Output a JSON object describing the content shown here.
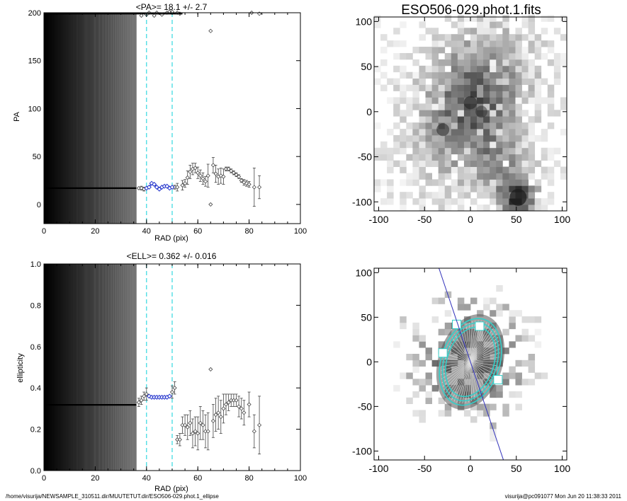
{
  "chart_data": [
    {
      "id": "pa-profile",
      "type": "scatter",
      "title": "<PA>=  18.1 +/-   2.7",
      "xlabel": "RAD (pix)",
      "ylabel": "PA",
      "xlim": [
        0,
        100
      ],
      "ylim": [
        -20,
        200
      ],
      "xticks": [
        0,
        20,
        40,
        60,
        80,
        100
      ],
      "yticks": [
        0,
        50,
        100,
        150,
        200
      ],
      "vlines": [
        40,
        50
      ],
      "inner_flat": {
        "from": 0,
        "to": 36,
        "y": 17
      },
      "top_row": {
        "from": 0,
        "to": 54,
        "y": 199
      },
      "top_markers": [
        {
          "x": 38,
          "y": 197
        },
        {
          "x": 40,
          "y": 198
        },
        {
          "x": 41,
          "y": 200
        },
        {
          "x": 43,
          "y": 197
        },
        {
          "x": 44,
          "y": 200
        },
        {
          "x": 46,
          "y": 198
        },
        {
          "x": 48,
          "y": 200
        },
        {
          "x": 49,
          "y": 201
        },
        {
          "x": 50,
          "y": 201
        },
        {
          "x": 52,
          "y": 200
        },
        {
          "x": 53,
          "y": 199
        },
        {
          "x": 65,
          "y": 181
        },
        {
          "x": 81,
          "y": 200
        },
        {
          "x": 84,
          "y": 199
        }
      ],
      "highlight": [
        {
          "x": 40,
          "y": 17
        },
        {
          "x": 41,
          "y": 18
        },
        {
          "x": 42,
          "y": 22
        },
        {
          "x": 43,
          "y": 21
        },
        {
          "x": 44,
          "y": 18
        },
        {
          "x": 45,
          "y": 16
        },
        {
          "x": 46,
          "y": 18
        },
        {
          "x": 47,
          "y": 19
        },
        {
          "x": 48,
          "y": 19
        },
        {
          "x": 49,
          "y": 17
        },
        {
          "x": 50,
          "y": 18
        }
      ],
      "points": [
        {
          "x": 37,
          "y": 17,
          "err": 1
        },
        {
          "x": 38,
          "y": 17,
          "err": 2
        },
        {
          "x": 39,
          "y": 16,
          "err": 2
        },
        {
          "x": 51,
          "y": 18,
          "err": 2
        },
        {
          "x": 52,
          "y": 18,
          "err": 4
        },
        {
          "x": 54,
          "y": 20,
          "err": 5
        },
        {
          "x": 55,
          "y": 22,
          "err": 4
        },
        {
          "x": 56,
          "y": 28,
          "err": 7
        },
        {
          "x": 57,
          "y": 34,
          "err": 7
        },
        {
          "x": 58,
          "y": 37,
          "err": 6
        },
        {
          "x": 59,
          "y": 38,
          "err": 5
        },
        {
          "x": 60,
          "y": 33,
          "err": 6
        },
        {
          "x": 61,
          "y": 30,
          "err": 6
        },
        {
          "x": 62,
          "y": 27,
          "err": 6
        },
        {
          "x": 63,
          "y": 24,
          "err": 5
        },
        {
          "x": 64,
          "y": 30,
          "err": 12
        },
        {
          "x": 65,
          "y": 0,
          "err": 0
        },
        {
          "x": 66,
          "y": 41,
          "err": 8
        },
        {
          "x": 67,
          "y": 32,
          "err": 9
        },
        {
          "x": 68,
          "y": 29,
          "err": 8
        },
        {
          "x": 69,
          "y": 30,
          "err": 8
        },
        {
          "x": 70,
          "y": 29,
          "err": 8
        },
        {
          "x": 71,
          "y": 37,
          "err": 2
        },
        {
          "x": 72,
          "y": 37,
          "err": 2
        },
        {
          "x": 73,
          "y": 35,
          "err": 2
        },
        {
          "x": 74,
          "y": 33,
          "err": 2
        },
        {
          "x": 75,
          "y": 31,
          "err": 2
        },
        {
          "x": 76,
          "y": 29,
          "err": 2
        },
        {
          "x": 77,
          "y": 25,
          "err": 2
        },
        {
          "x": 78,
          "y": 23,
          "err": 3
        },
        {
          "x": 79,
          "y": 22,
          "err": 3
        },
        {
          "x": 80,
          "y": 21,
          "err": 3
        },
        {
          "x": 82,
          "y": 18,
          "err": 20
        },
        {
          "x": 84,
          "y": 18,
          "err": 12
        }
      ]
    },
    {
      "id": "ell-profile",
      "type": "scatter",
      "title": "<ELL>= 0.362 +/-  0.016",
      "xlabel": "RAD (pix)",
      "ylabel": "ellipticity",
      "xlim": [
        0,
        100
      ],
      "ylim": [
        0,
        1
      ],
      "xticks": [
        0,
        20,
        40,
        60,
        80,
        100
      ],
      "yticks": [
        0.0,
        0.2,
        0.4,
        0.6,
        0.8,
        1.0
      ],
      "vlines": [
        40,
        50
      ],
      "inner_flat": {
        "from": 0,
        "to": 36,
        "y": 0.318
      },
      "highlight": [
        {
          "x": 41,
          "y": 0.36
        },
        {
          "x": 42,
          "y": 0.355
        },
        {
          "x": 43,
          "y": 0.355
        },
        {
          "x": 44,
          "y": 0.355
        },
        {
          "x": 45,
          "y": 0.355
        },
        {
          "x": 46,
          "y": 0.355
        },
        {
          "x": 47,
          "y": 0.355
        },
        {
          "x": 48,
          "y": 0.355
        },
        {
          "x": 49,
          "y": 0.36
        }
      ],
      "points": [
        {
          "x": 37,
          "y": 0.33,
          "err": 0.02
        },
        {
          "x": 38,
          "y": 0.34,
          "err": 0.02
        },
        {
          "x": 39,
          "y": 0.36,
          "err": 0.02
        },
        {
          "x": 40,
          "y": 0.37,
          "err": 0.03
        },
        {
          "x": 50,
          "y": 0.38,
          "err": 0.03
        },
        {
          "x": 51,
          "y": 0.4,
          "err": 0.03
        },
        {
          "x": 52,
          "y": 0.15,
          "err": 0.02
        },
        {
          "x": 53,
          "y": 0.15,
          "err": 0.03
        },
        {
          "x": 54,
          "y": 0.22,
          "err": 0.04
        },
        {
          "x": 55,
          "y": 0.22,
          "err": 0.05
        },
        {
          "x": 56,
          "y": 0.21,
          "err": 0.06
        },
        {
          "x": 57,
          "y": 0.23,
          "err": 0.06
        },
        {
          "x": 58,
          "y": 0.18,
          "err": 0.07
        },
        {
          "x": 59,
          "y": 0.19,
          "err": 0.07
        },
        {
          "x": 60,
          "y": 0.18,
          "err": 0.08
        },
        {
          "x": 61,
          "y": 0.23,
          "err": 0.08
        },
        {
          "x": 62,
          "y": 0.22,
          "err": 0.07
        },
        {
          "x": 63,
          "y": 0.19,
          "err": 0.08
        },
        {
          "x": 64,
          "y": 0.19,
          "err": 0.09
        },
        {
          "x": 65,
          "y": 0.49,
          "err": 0
        },
        {
          "x": 66,
          "y": 0.24,
          "err": 0.08
        },
        {
          "x": 67,
          "y": 0.27,
          "err": 0.08
        },
        {
          "x": 68,
          "y": 0.28,
          "err": 0.08
        },
        {
          "x": 69,
          "y": 0.26,
          "err": 0.08
        },
        {
          "x": 70,
          "y": 0.3,
          "err": 0.07
        },
        {
          "x": 71,
          "y": 0.32,
          "err": 0.05
        },
        {
          "x": 72,
          "y": 0.33,
          "err": 0.04
        },
        {
          "x": 73,
          "y": 0.34,
          "err": 0.03
        },
        {
          "x": 74,
          "y": 0.34,
          "err": 0.03
        },
        {
          "x": 75,
          "y": 0.34,
          "err": 0.03
        },
        {
          "x": 76,
          "y": 0.31,
          "err": 0.05
        },
        {
          "x": 77,
          "y": 0.3,
          "err": 0.05
        },
        {
          "x": 78,
          "y": 0.28,
          "err": 0.06
        },
        {
          "x": 80,
          "y": 0.32,
          "err": 0.06
        },
        {
          "x": 82,
          "y": 0.19,
          "err": 0.08
        },
        {
          "x": 84,
          "y": 0.22,
          "err": 0.14
        }
      ]
    },
    {
      "id": "image-panel",
      "type": "heatmap",
      "title": "ESO506-029.phot.1.fits",
      "xlim": [
        -105,
        105
      ],
      "ylim": [
        -110,
        105
      ],
      "xticks": [
        -100,
        -50,
        0,
        50,
        100
      ],
      "yticks": [
        -100,
        -50,
        0,
        50,
        100
      ],
      "sources": [
        {
          "x": 0,
          "y": 10,
          "flux": 0.55
        },
        {
          "x": 52,
          "y": -95,
          "flux": 1.0
        },
        {
          "x": -30,
          "y": -20,
          "flux": 0.5
        },
        {
          "x": 12,
          "y": 0,
          "flux": 0.4
        }
      ]
    },
    {
      "id": "model-panel",
      "type": "heatmap",
      "xlim": [
        -105,
        105
      ],
      "ylim": [
        -110,
        105
      ],
      "xticks": [
        -100,
        -50,
        0,
        50,
        100
      ],
      "yticks": [
        -100,
        -50,
        0,
        50,
        100
      ],
      "ellipse_pa_deg": 18.1,
      "ellipticity": 0.362,
      "ellipse_sma": [
        40,
        45,
        50
      ],
      "mask_color": "#35cfc9"
    }
  ],
  "footer": {
    "left": "/home/visurija/NEWSAMPLE_310511.dir/MUUTETUT.dir/ESO506-029.phot.1_ellipse",
    "right": "visurija@pc091077  Mon Jun 20 11:38:33 2011"
  },
  "colors": {
    "highlight": "#2233cc",
    "vline": "#33d8e0",
    "ellipse": "#35cfc9",
    "major_axis": "#3333bb"
  }
}
